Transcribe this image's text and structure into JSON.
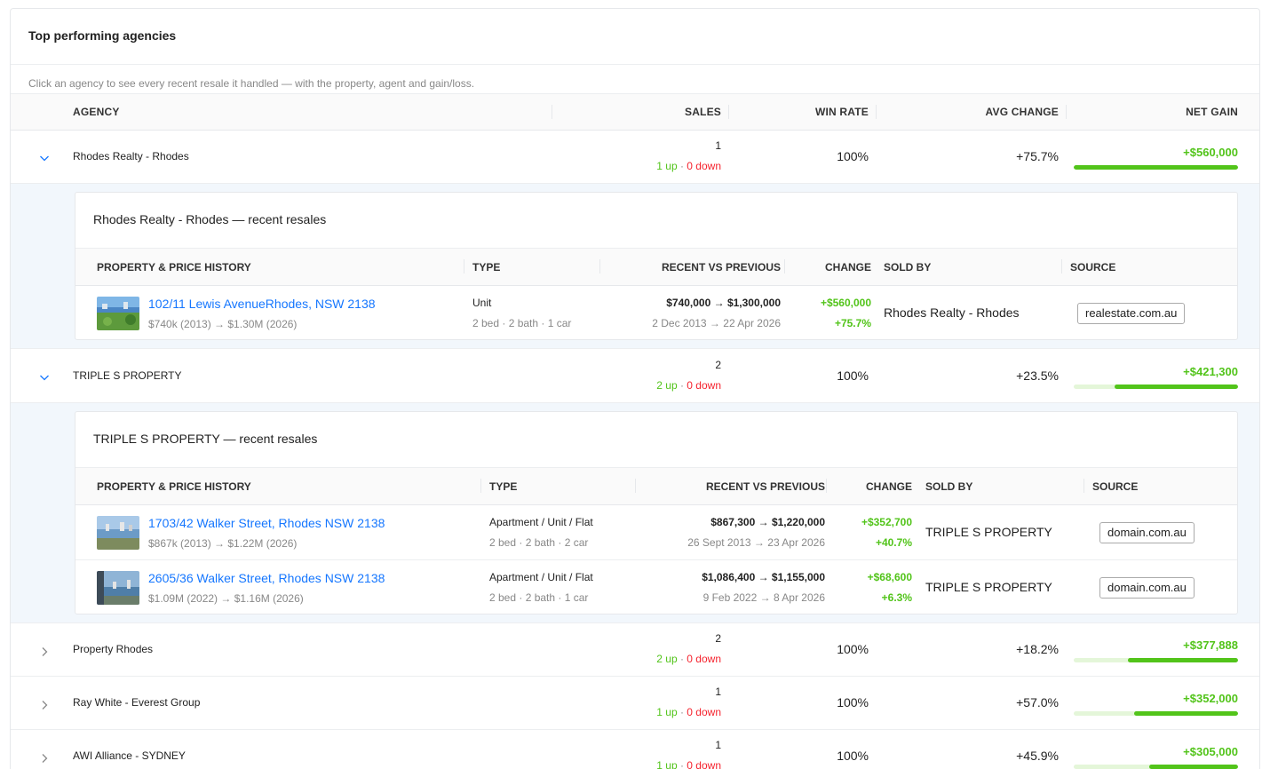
{
  "card": {
    "title": "Top performing agencies",
    "subtitle": "Click an agency to see every recent resale it handled — with the property, agent and gain/loss."
  },
  "columns": {
    "agency": "AGENCY",
    "sales": "SALES",
    "win_rate": "WIN RATE",
    "avg_change": "AVG CHANGE",
    "net_gain": "NET GAIN"
  },
  "sub_columns": {
    "property": "PROPERTY & PRICE HISTORY",
    "type": "TYPE",
    "recent_vs_previous": "RECENT VS PREVIOUS",
    "change": "CHANGE",
    "sold_by": "SOLD BY",
    "source": "SOURCE"
  },
  "colors": {
    "accent": "#1677ff",
    "up": "#52c41a",
    "down": "#f5222d"
  },
  "agencies": [
    {
      "name": "Rhodes Realty - Rhodes",
      "sales": "1",
      "up": "1 up",
      "sep": "·",
      "down": "0 down",
      "win_rate": "100%",
      "avg_change": "+75.7%",
      "net_gain": "+$560,000",
      "net_gain_fraction": 1.0,
      "expanded": true,
      "chevron": "chevron-down-icon",
      "resales_title": "Rhodes Realty - Rhodes — recent resales",
      "resales": [
        {
          "address": "102/11 Lewis AvenueRhodes, NSW 2138",
          "history": "$740k (2013) → $1.30M (2026)",
          "type": "Unit",
          "spec": "2 bed · 2 bath · 1 car",
          "prices": "$740,000 → $1,300,000",
          "dates": "2 Dec 2013 → 22 Apr 2026",
          "change": "+$560,000",
          "change_pct": "+75.7%",
          "sold_by": "Rhodes Realty - Rhodes",
          "source": "realestate.com.au"
        }
      ]
    },
    {
      "name": "TRIPLE S PROPERTY",
      "sales": "2",
      "up": "2 up",
      "sep": "·",
      "down": "0 down",
      "win_rate": "100%",
      "avg_change": "+23.5%",
      "net_gain": "+$421,300",
      "net_gain_fraction": 0.75,
      "expanded": true,
      "chevron": "chevron-down-icon",
      "resales_title": "TRIPLE S PROPERTY — recent resales",
      "resales": [
        {
          "address": "1703/42 Walker Street, Rhodes NSW 2138",
          "history": "$867k (2013) → $1.22M (2026)",
          "type": "Apartment / Unit / Flat",
          "spec": "2 bed · 2 bath · 2 car",
          "prices": "$867,300 → $1,220,000",
          "dates": "26 Sept 2013 → 23 Apr 2026",
          "change": "+$352,700",
          "change_pct": "+40.7%",
          "sold_by": "TRIPLE S PROPERTY",
          "source": "domain.com.au"
        },
        {
          "address": "2605/36 Walker Street, Rhodes NSW 2138",
          "history": "$1.09M (2022) → $1.16M (2026)",
          "type": "Apartment / Unit / Flat",
          "spec": "2 bed · 2 bath · 1 car",
          "prices": "$1,086,400 → $1,155,000",
          "dates": "9 Feb 2022 → 8 Apr 2026",
          "change": "+$68,600",
          "change_pct": "+6.3%",
          "sold_by": "TRIPLE S PROPERTY",
          "source": "domain.com.au"
        }
      ]
    },
    {
      "name": "Property Rhodes",
      "sales": "2",
      "up": "2 up",
      "sep": "·",
      "down": "0 down",
      "win_rate": "100%",
      "avg_change": "+18.2%",
      "net_gain": "+$377,888",
      "net_gain_fraction": 0.67,
      "expanded": false,
      "chevron": "chevron-right-icon"
    },
    {
      "name": "Ray White - Everest Group",
      "sales": "1",
      "up": "1 up",
      "sep": "·",
      "down": "0 down",
      "win_rate": "100%",
      "avg_change": "+57.0%",
      "net_gain": "+$352,000",
      "net_gain_fraction": 0.63,
      "expanded": false,
      "chevron": "chevron-right-icon"
    },
    {
      "name": "AWI Alliance - SYDNEY",
      "sales": "1",
      "up": "1 up",
      "sep": "·",
      "down": "0 down",
      "win_rate": "100%",
      "avg_change": "+45.9%",
      "net_gain": "+$305,000",
      "net_gain_fraction": 0.54,
      "expanded": false,
      "chevron": "chevron-right-icon"
    }
  ]
}
